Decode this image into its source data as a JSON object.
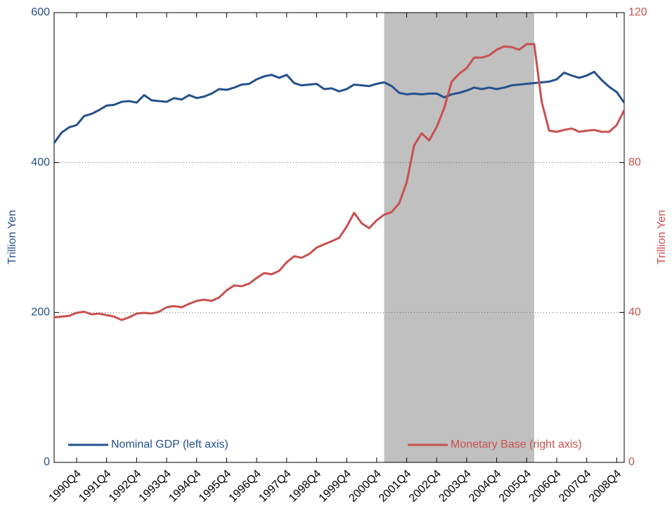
{
  "chart_data": {
    "type": "line",
    "y_label": "Trillion Yen",
    "y2_label": "Trillion Yen",
    "categories": [
      null,
      null,
      null,
      "1990Q4",
      null,
      null,
      null,
      "1991Q4",
      null,
      null,
      null,
      "1992Q4",
      null,
      null,
      null,
      "1993Q4",
      null,
      null,
      null,
      "1994Q4",
      null,
      null,
      null,
      "1995Q4",
      null,
      null,
      null,
      "1996Q4",
      null,
      null,
      null,
      "1997Q4",
      null,
      null,
      null,
      "1998Q4",
      null,
      null,
      null,
      "1999Q4",
      null,
      null,
      null,
      "2000Q4",
      null,
      null,
      null,
      "2001Q4",
      null,
      null,
      null,
      "2002Q4",
      null,
      null,
      null,
      "2003Q4",
      null,
      null,
      null,
      "2004Q4",
      null,
      null,
      null,
      "2005Q4",
      null,
      null,
      null,
      "2006Q4",
      null,
      null,
      null,
      "2007Q4",
      null,
      null,
      null,
      "2008Q4",
      null
    ],
    "series": [
      {
        "name": "Nominal GDP (left axis)",
        "color": "#24508c",
        "axis": "y",
        "values": [
          426,
          440,
          447,
          450,
          462,
          465,
          470,
          476,
          477,
          481,
          482,
          480,
          490,
          483,
          482,
          481,
          486,
          484,
          490,
          486,
          488,
          492,
          498,
          497,
          500,
          504,
          505,
          511,
          515,
          517,
          513,
          517,
          506,
          503,
          504,
          505,
          498,
          499,
          495,
          498,
          504,
          503,
          502,
          505,
          507,
          502,
          493,
          491,
          492,
          491,
          492,
          492,
          487,
          491,
          493,
          496,
          500,
          498,
          500,
          498,
          500,
          503,
          504,
          505,
          506,
          507,
          508,
          511,
          520,
          516,
          513,
          516,
          521,
          510,
          501,
          494,
          480
        ]
      },
      {
        "name": "Monetary Base (right axis)",
        "color": "#c8504f",
        "axis": "y2",
        "values": [
          38.7,
          38.9,
          39.1,
          39.9,
          40.2,
          39.5,
          39.7,
          39.3,
          38.9,
          38.0,
          38.7,
          39.7,
          39.9,
          39.7,
          40.2,
          41.4,
          41.7,
          41.4,
          42.3,
          43.1,
          43.4,
          43.1,
          44.0,
          45.9,
          47.2,
          47.0,
          47.7,
          49.2,
          50.5,
          50.2,
          51.1,
          53.4,
          55.0,
          54.6,
          55.6,
          57.3,
          58.2,
          59.0,
          59.9,
          62.9,
          66.6,
          63.8,
          62.5,
          64.6,
          66.1,
          66.8,
          69.1,
          74.7,
          84.6,
          87.8,
          85.9,
          89.5,
          94.5,
          101.6,
          103.7,
          105.2,
          108.0,
          108.0,
          108.6,
          110.1,
          111.0,
          110.8,
          110.1,
          111.6,
          111.6,
          96.2,
          88.5,
          88.2,
          88.7,
          89.1,
          88.2,
          88.5,
          88.7,
          88.2,
          88.2,
          90.0,
          94.0
        ]
      }
    ],
    "ylim": [
      0,
      600
    ],
    "yticks": [
      0,
      200,
      400,
      600
    ],
    "y2lim": [
      0,
      120
    ],
    "y2ticks": [
      0,
      40,
      80,
      120
    ],
    "grid": true,
    "shaded_range": [
      44,
      64
    ],
    "shade_color": "#c0c0c0"
  }
}
